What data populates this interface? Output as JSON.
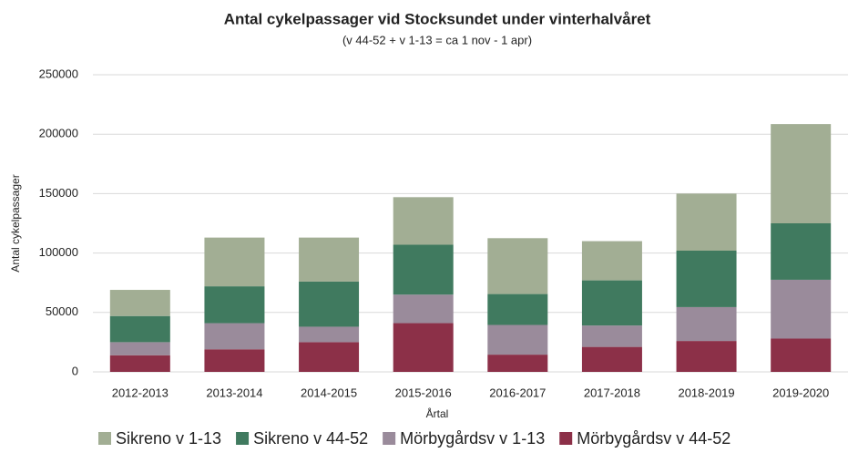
{
  "chart_data": {
    "type": "stacked_bar",
    "title": "Antal cykelpassager vid Stocksundet under vinterhalvåret",
    "subtitle": "(v 44-52 + v 1-13 = ca 1 nov - 1 apr)",
    "x_label": "Årtal",
    "y_label": "Antal cykelpassager",
    "categories": [
      "2012-2013",
      "2013-2014",
      "2014-2015",
      "2015-2016",
      "2016-2017",
      "2017-2018",
      "2018-2019",
      "2019-2020"
    ],
    "series": [
      {
        "name": "Sikreno v 1-13",
        "color": "#a2ae94",
        "values": [
          22000,
          41000,
          37000,
          40000,
          47000,
          33000,
          48000,
          83500
        ]
      },
      {
        "name": "Sikreno v 44-52",
        "color": "#407a5f",
        "values": [
          22000,
          31000,
          38000,
          42000,
          26000,
          38000,
          47500,
          47500
        ]
      },
      {
        "name": "Mörbygårdsv v 1-13",
        "color": "#9a8b9b",
        "values": [
          11000,
          22000,
          13000,
          24000,
          25000,
          18000,
          28500,
          49500
        ]
      },
      {
        "name": "Mörbygårdsv v 44-52",
        "color": "#8c3048",
        "values": [
          14000,
          19000,
          25000,
          41000,
          14500,
          21000,
          26000,
          28000
        ]
      }
    ],
    "ylim": [
      0,
      250000
    ],
    "yticks": [
      0,
      50000,
      100000,
      150000,
      200000,
      250000
    ],
    "grid": true,
    "legend": "bottom"
  }
}
